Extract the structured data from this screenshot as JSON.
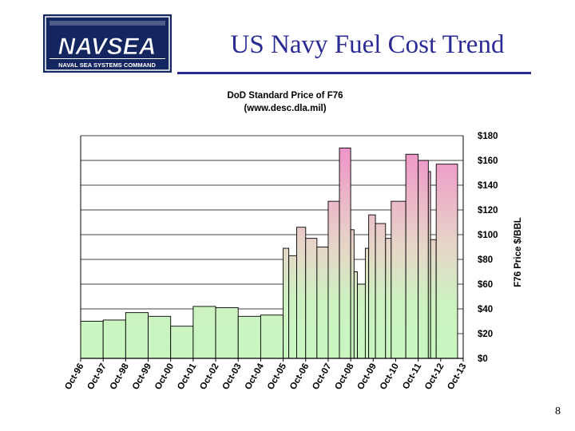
{
  "slide": {
    "title": "US Navy Fuel Cost Trend",
    "page_number": "8",
    "colors": {
      "title": "#2b2b96",
      "logo_bg": "#14265f"
    }
  },
  "logo": {
    "wordmark": "NAVSEA",
    "tagline": "NAVAL SEA SYSTEMS COMMAND"
  },
  "chart_data": {
    "type": "bar",
    "title": "DoD Standard Price of F76",
    "subtitle": "(www.desc.dla.mil)",
    "ylabel": "F76 Price $/BBL",
    "xlabel": "",
    "ylim": [
      0,
      180
    ],
    "yticks": [
      "$0",
      "$20",
      "$40",
      "$60",
      "$80",
      "$100",
      "$120",
      "$140",
      "$160",
      "$180"
    ],
    "grid": "horizontal",
    "y_axis_side": "right",
    "xticks": [
      "Oct-96",
      "Oct-97",
      "Oct-98",
      "Oct-99",
      "Oct-00",
      "Oct-01",
      "Oct-02",
      "Oct-03",
      "Oct-04",
      "Oct-05",
      "Oct-06",
      "Oct-07",
      "Oct-08",
      "Oct-09",
      "Oct-10",
      "Oct-11",
      "Oct-12",
      "Oct-13"
    ],
    "bars": [
      {
        "start": 1996.75,
        "end": 1997.75,
        "value": 30
      },
      {
        "start": 1997.75,
        "end": 1998.75,
        "value": 31
      },
      {
        "start": 1998.75,
        "end": 1999.75,
        "value": 37
      },
      {
        "start": 1999.75,
        "end": 2000.75,
        "value": 34
      },
      {
        "start": 2000.75,
        "end": 2001.75,
        "value": 26
      },
      {
        "start": 2001.75,
        "end": 2002.75,
        "value": 42
      },
      {
        "start": 2002.75,
        "end": 2003.75,
        "value": 41
      },
      {
        "start": 2003.75,
        "end": 2004.75,
        "value": 34
      },
      {
        "start": 2004.75,
        "end": 2005.75,
        "value": 35
      },
      {
        "start": 2005.75,
        "end": 2006.0,
        "value": 89
      },
      {
        "start": 2006.0,
        "end": 2006.35,
        "value": 83
      },
      {
        "start": 2006.35,
        "end": 2006.75,
        "value": 106
      },
      {
        "start": 2006.75,
        "end": 2007.25,
        "value": 97
      },
      {
        "start": 2007.25,
        "end": 2007.75,
        "value": 90
      },
      {
        "start": 2007.75,
        "end": 2008.25,
        "value": 127
      },
      {
        "start": 2008.25,
        "end": 2008.75,
        "value": 170
      },
      {
        "start": 2008.75,
        "end": 2008.9,
        "value": 104
      },
      {
        "start": 2008.9,
        "end": 2009.05,
        "value": 70
      },
      {
        "start": 2009.05,
        "end": 2009.4,
        "value": 60
      },
      {
        "start": 2009.4,
        "end": 2009.55,
        "value": 89
      },
      {
        "start": 2009.55,
        "end": 2009.85,
        "value": 116
      },
      {
        "start": 2009.85,
        "end": 2010.3,
        "value": 109
      },
      {
        "start": 2010.3,
        "end": 2010.55,
        "value": 97
      },
      {
        "start": 2010.55,
        "end": 2011.2,
        "value": 127
      },
      {
        "start": 2011.2,
        "end": 2011.75,
        "value": 165
      },
      {
        "start": 2011.75,
        "end": 2012.2,
        "value": 160
      },
      {
        "start": 2012.2,
        "end": 2012.3,
        "value": 151
      },
      {
        "start": 2012.3,
        "end": 2012.55,
        "value": 96
      },
      {
        "start": 2012.55,
        "end": 2013.5,
        "value": 157
      }
    ],
    "colors": {
      "low": "#c8f7c0",
      "high": "#f08cc8",
      "edge": "#000000",
      "grid": "#000000"
    }
  }
}
